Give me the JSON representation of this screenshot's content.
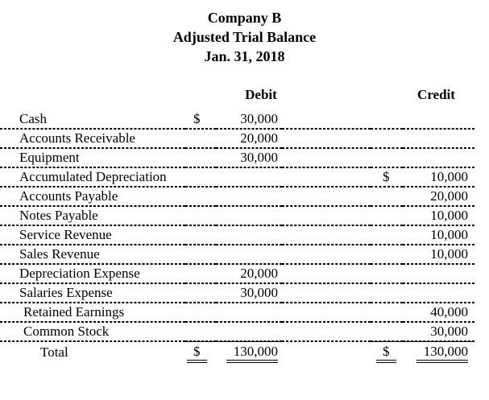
{
  "page": {
    "background_color": "#ffffff",
    "text_color": "#000000"
  },
  "title": {
    "company": "Company B",
    "report": "Adjusted Trial Balance",
    "date": "Jan. 31, 2018"
  },
  "table": {
    "headers": {
      "debit": "Debit",
      "credit": "Credit"
    },
    "rows": [
      {
        "account": "Cash",
        "debit_symbol": "$",
        "debit": "30,000"
      },
      {
        "account": "Accounts Receivable",
        "debit": "20,000"
      },
      {
        "account": "Equipment",
        "debit": "30,000"
      },
      {
        "account": "Accumulated Depreciation",
        "credit_symbol": "$",
        "credit": "10,000"
      },
      {
        "account": "Accounts Payable",
        "credit": "20,000"
      },
      {
        "account": "Notes Payable",
        "credit": "10,000"
      },
      {
        "account": "Service Revenue",
        "credit": "10,000"
      },
      {
        "account": "Sales Revenue",
        "credit": "10,000"
      },
      {
        "account": "Depreciation Expense",
        "debit": "20,000"
      },
      {
        "account": "Salaries Expense",
        "debit": "30,000"
      },
      {
        "account": "Retained Earnings",
        "credit": "40,000"
      },
      {
        "account": "Common Stock",
        "credit": "30,000"
      }
    ],
    "total": {
      "label": "Total",
      "debit_symbol": "$",
      "debit": "130,000",
      "credit_symbol": "$",
      "credit": "130,000"
    }
  }
}
